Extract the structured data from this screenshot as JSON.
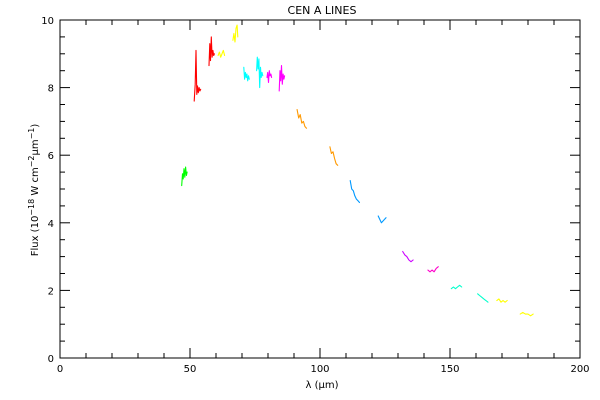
{
  "chart_data": {
    "type": "line",
    "title": "CEN A LINES",
    "xlabel": "λ (μm)",
    "ylabel": "Flux (10^-18 W cm^-2 μm^-1)",
    "ylabel_parts": {
      "prefix": "Flux (10",
      "exp1": "−18",
      "mid": " W cm",
      "exp2": "−2",
      "mu": "μm",
      "exp3": "−1",
      "suffix": ")"
    },
    "xlim": [
      0,
      200
    ],
    "ylim": [
      0,
      10
    ],
    "xticks": [
      0,
      50,
      100,
      150,
      200
    ],
    "yticks": [
      0,
      2,
      4,
      6,
      8,
      10
    ],
    "grid": false,
    "series": [
      {
        "color": "#00ff00",
        "x": [
          46.8,
          47.1,
          47.4,
          47.7,
          48.0,
          48.3,
          48.6,
          48.9
        ],
        "y": [
          5.1,
          5.45,
          5.3,
          5.6,
          5.35,
          5.65,
          5.4,
          5.5
        ]
      },
      {
        "color": "#ff0000",
        "x": [
          51.6,
          52.0,
          52.3,
          52.6,
          52.9,
          53.2,
          53.5,
          53.8,
          54.1
        ],
        "y": [
          7.6,
          8.1,
          9.1,
          7.8,
          8.05,
          7.85,
          8.0,
          7.9,
          7.95
        ]
      },
      {
        "color": "#ff0000",
        "x": [
          57.3,
          57.6,
          57.9,
          58.2,
          58.5,
          58.8,
          59.1,
          59.4
        ],
        "y": [
          8.65,
          9.3,
          8.8,
          9.5,
          8.9,
          9.1,
          8.95,
          9.0
        ]
      },
      {
        "color": "#ffff00",
        "x": [
          60.8,
          61.3,
          61.8,
          62.3,
          62.8,
          63.3
        ],
        "y": [
          8.95,
          9.05,
          8.9,
          9.0,
          9.1,
          8.95
        ]
      },
      {
        "color": "#ffff00",
        "x": [
          66.5,
          66.9,
          67.3,
          67.7,
          68.1,
          68.4
        ],
        "y": [
          9.4,
          9.6,
          9.35,
          9.75,
          9.85,
          9.5
        ]
      },
      {
        "color": "#00ffff",
        "x": [
          70.7,
          71.0,
          71.3,
          71.6,
          71.9,
          72.2,
          72.5,
          72.8
        ],
        "y": [
          8.6,
          8.25,
          8.45,
          8.3,
          8.4,
          8.2,
          8.35,
          8.25
        ]
      },
      {
        "color": "#00ffff",
        "x": [
          75.6,
          75.9,
          76.2,
          76.5,
          76.8,
          77.1,
          77.4,
          77.7,
          78.0
        ],
        "y": [
          8.5,
          8.9,
          8.55,
          8.85,
          8.0,
          8.6,
          8.3,
          8.45,
          8.35
        ]
      },
      {
        "color": "#ff00ff",
        "x": [
          79.6,
          79.9,
          80.2,
          80.5,
          80.8,
          81.1,
          81.4
        ],
        "y": [
          8.3,
          8.45,
          8.15,
          8.5,
          8.35,
          8.4,
          8.3
        ]
      },
      {
        "color": "#ff00ff",
        "x": [
          84.3,
          84.6,
          84.9,
          85.2,
          85.5,
          85.8,
          86.1,
          86.4
        ],
        "y": [
          7.9,
          8.5,
          8.2,
          8.65,
          8.1,
          8.4,
          8.25,
          8.35
        ]
      },
      {
        "color": "#ff9900",
        "x": [
          91.2,
          91.8,
          92.4,
          93.0,
          93.6,
          94.2,
          94.8
        ],
        "y": [
          7.35,
          7.1,
          7.2,
          6.95,
          7.0,
          6.85,
          6.8
        ]
      },
      {
        "color": "#ff9900",
        "x": [
          103.8,
          104.4,
          105.0,
          105.6,
          106.2,
          106.8
        ],
        "y": [
          6.25,
          6.05,
          6.1,
          5.9,
          5.75,
          5.7
        ]
      },
      {
        "color": "#0099ff",
        "x": [
          111.6,
          112.2,
          112.8,
          113.4,
          114.0,
          114.6,
          115.2
        ],
        "y": [
          5.25,
          5.0,
          4.95,
          4.8,
          4.7,
          4.65,
          4.6
        ]
      },
      {
        "color": "#0099ff",
        "x": [
          122.4,
          123.0,
          123.6,
          124.2,
          124.8,
          125.4
        ],
        "y": [
          4.2,
          4.1,
          4.0,
          4.05,
          4.1,
          4.15
        ]
      },
      {
        "color": "#cc00ff",
        "x": [
          131.8,
          132.6,
          133.4,
          134.2,
          135.0,
          135.8
        ],
        "y": [
          3.15,
          3.05,
          3.0,
          2.9,
          2.85,
          2.9
        ]
      },
      {
        "color": "#ff00cc",
        "x": [
          141.5,
          142.3,
          143.1,
          143.9,
          144.7,
          145.5
        ],
        "y": [
          2.6,
          2.55,
          2.6,
          2.55,
          2.65,
          2.7
        ]
      },
      {
        "color": "#00ffcc",
        "x": [
          150.5,
          151.3,
          152.1,
          152.9,
          153.7,
          154.5
        ],
        "y": [
          2.05,
          2.1,
          2.05,
          2.1,
          2.15,
          2.1
        ]
      },
      {
        "color": "#00ffcc",
        "x": [
          160.6,
          161.4,
          162.2,
          163.0,
          163.8,
          164.6
        ],
        "y": [
          1.9,
          1.85,
          1.8,
          1.75,
          1.7,
          1.65
        ]
      },
      {
        "color": "#ffff00",
        "x": [
          168.0,
          168.8,
          169.6,
          170.4,
          171.2,
          172.0
        ],
        "y": [
          1.7,
          1.75,
          1.65,
          1.7,
          1.65,
          1.7
        ]
      },
      {
        "color": "#ffff00",
        "x": [
          177.0,
          178.0,
          179.0,
          180.0,
          181.0,
          182.0
        ],
        "y": [
          1.3,
          1.35,
          1.3,
          1.3,
          1.25,
          1.3
        ]
      }
    ]
  }
}
